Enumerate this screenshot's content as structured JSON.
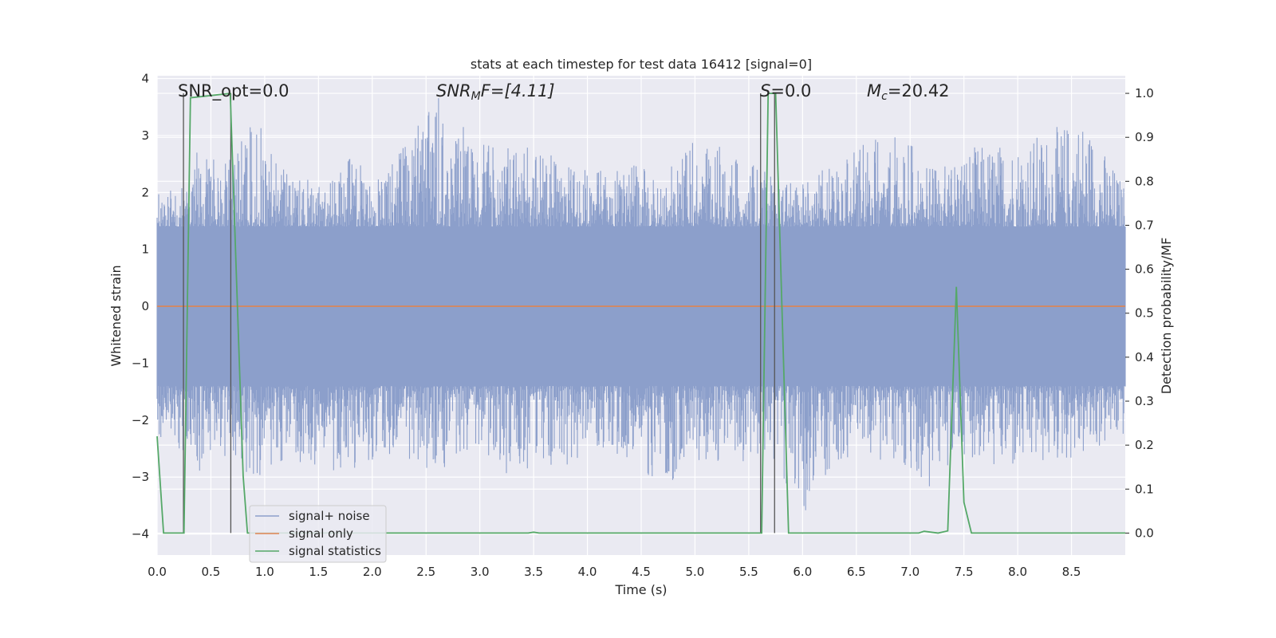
{
  "chart_data": {
    "type": "line",
    "title": "stats at each timestep for test data 16412 [signal=0]",
    "xlabel": "Time (s)",
    "ylabel_left": "Whitened strain",
    "ylabel_right": "Detection probability/MF",
    "xlim": [
      0,
      9.0
    ],
    "ylim_left": [
      -4.37,
      4.05
    ],
    "ylim_right": [
      -0.05,
      1.04
    ],
    "x_ticks": [
      "0.0",
      "0.5",
      "1.0",
      "1.5",
      "2.0",
      "2.5",
      "3.0",
      "3.5",
      "4.0",
      "4.5",
      "5.0",
      "5.5",
      "6.0",
      "6.5",
      "7.0",
      "7.5",
      "8.0",
      "8.5"
    ],
    "y_ticks_left": [
      "−4",
      "−3",
      "−2",
      "−1",
      "0",
      "1",
      "2",
      "3",
      "4"
    ],
    "y_ticks_right": [
      "0.0",
      "0.1",
      "0.2",
      "0.3",
      "0.4",
      "0.5",
      "0.6",
      "0.7",
      "0.8",
      "0.9",
      "1.0"
    ],
    "grid": true,
    "legend_placement": "lower-left",
    "annotations": {
      "snr_opt": "SNR_opt=0.0",
      "snr_mf_name": "SNR",
      "snr_mf_sub": "M",
      "snr_mf_rest": "F=[4.11]",
      "s_name": "S",
      "s_rest": "=0.0",
      "mc_name": "M",
      "mc_sub": "c",
      "mc_rest": "=20.42"
    },
    "series": [
      {
        "name": "signal+ noise",
        "color": "#8c9fcb",
        "note_envelope": true,
        "envelope_points": [
          [
            0.0,
            2.0,
            -2.3
          ],
          [
            0.25,
            2.1,
            -2.6
          ],
          [
            0.4,
            3.2,
            -2.9
          ],
          [
            0.6,
            2.4,
            -2.6
          ],
          [
            0.9,
            3.4,
            -3.1
          ],
          [
            1.2,
            2.4,
            -2.7
          ],
          [
            1.5,
            2.2,
            -2.8
          ],
          [
            1.8,
            2.6,
            -3.0
          ],
          [
            2.1,
            2.3,
            -2.6
          ],
          [
            2.6,
            3.7,
            -2.9
          ],
          [
            3.0,
            2.9,
            -2.8
          ],
          [
            3.5,
            2.8,
            -3.1
          ],
          [
            4.0,
            2.4,
            -2.6
          ],
          [
            4.5,
            2.5,
            -2.8
          ],
          [
            4.7,
            2.2,
            -3.4
          ],
          [
            4.9,
            2.9,
            -2.7
          ],
          [
            5.3,
            2.8,
            -2.8
          ],
          [
            5.7,
            2.3,
            -2.6
          ],
          [
            6.0,
            2.2,
            -3.7
          ],
          [
            6.3,
            2.6,
            -2.7
          ],
          [
            6.9,
            3.2,
            -2.9
          ],
          [
            7.2,
            2.4,
            -3.3
          ],
          [
            7.5,
            2.8,
            -2.6
          ],
          [
            7.9,
            2.9,
            -3.0
          ],
          [
            8.3,
            3.1,
            -2.8
          ],
          [
            8.6,
            3.4,
            -2.7
          ],
          [
            9.0,
            2.1,
            -2.3
          ]
        ]
      },
      {
        "name": "signal only",
        "color": "#dd8452",
        "x": [
          0.0,
          9.0
        ],
        "y": [
          0.0,
          0.0
        ]
      },
      {
        "name": "signal statistics",
        "color": "#55a868",
        "axis": "right",
        "x": [
          0.0,
          0.06,
          0.25,
          0.31,
          0.68,
          0.8,
          0.84,
          3.45,
          3.5,
          3.55,
          5.62,
          5.68,
          5.75,
          5.87,
          7.08,
          7.13,
          7.26,
          7.35,
          7.43,
          7.5,
          7.57,
          9.0
        ],
        "y": [
          0.22,
          0.0,
          0.0,
          0.99,
          1.0,
          0.13,
          0.0,
          0.0,
          0.002,
          0.0,
          0.0,
          1.0,
          1.0,
          0.0,
          0.0,
          0.004,
          0.0,
          0.005,
          0.56,
          0.07,
          0.0,
          0.0
        ]
      }
    ],
    "vertical_markers": {
      "color": "#555555",
      "x": [
        0.245,
        0.685,
        5.61,
        5.74
      ]
    }
  }
}
